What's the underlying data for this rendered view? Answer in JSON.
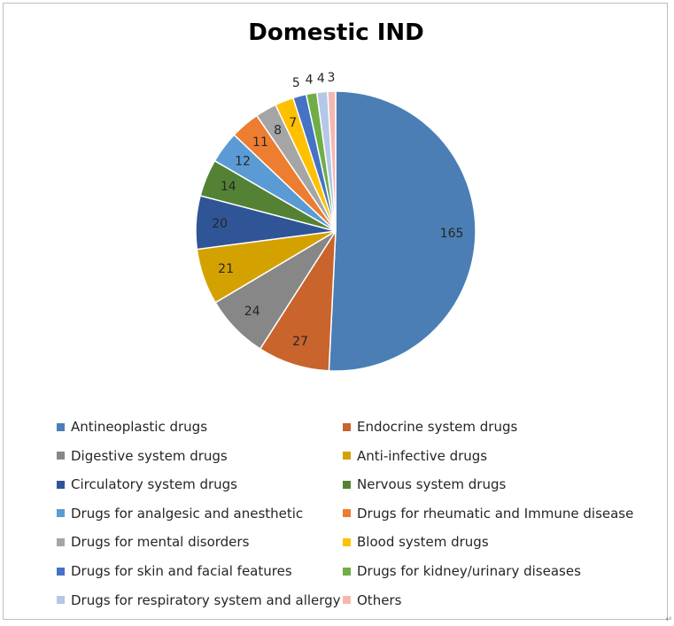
{
  "chart_data": {
    "type": "pie",
    "title": "Domestic IND",
    "start_angle_deg": 0,
    "direction": "clockwise",
    "legend_position": "bottom",
    "slices": [
      {
        "label": "Antineoplastic drugs",
        "value": 165,
        "color": "#4a7eb5"
      },
      {
        "label": "Endocrine system drugs",
        "value": 27,
        "color": "#c8642c"
      },
      {
        "label": "Digestive system drugs",
        "value": 24,
        "color": "#878787"
      },
      {
        "label": "Anti-infective drugs",
        "value": 21,
        "color": "#d4a200"
      },
      {
        "label": "Circulatory system drugs",
        "value": 20,
        "color": "#2f5597"
      },
      {
        "label": "Nervous system drugs",
        "value": 14,
        "color": "#548235"
      },
      {
        "label": "Drugs for analgesic and anesthetic",
        "value": 12,
        "color": "#5b9bd5"
      },
      {
        "label": "Drugs for rheumatic and Immune disease",
        "value": 11,
        "color": "#ed7d31"
      },
      {
        "label": "Drugs for mental disorders",
        "value": 8,
        "color": "#a5a5a5"
      },
      {
        "label": "Blood system drugs",
        "value": 7,
        "color": "#ffc000"
      },
      {
        "label": "Drugs for skin and facial features",
        "value": 5,
        "color": "#4472c4"
      },
      {
        "label": "Drugs for kidney/urinary diseases",
        "value": 4,
        "color": "#70ad47"
      },
      {
        "label": "Drugs for respiratory system and allergy",
        "value": 4,
        "color": "#b4c7e7"
      },
      {
        "label": "Others",
        "value": 3,
        "color": "#f4b8b0"
      }
    ]
  },
  "corner_mark": "↵"
}
